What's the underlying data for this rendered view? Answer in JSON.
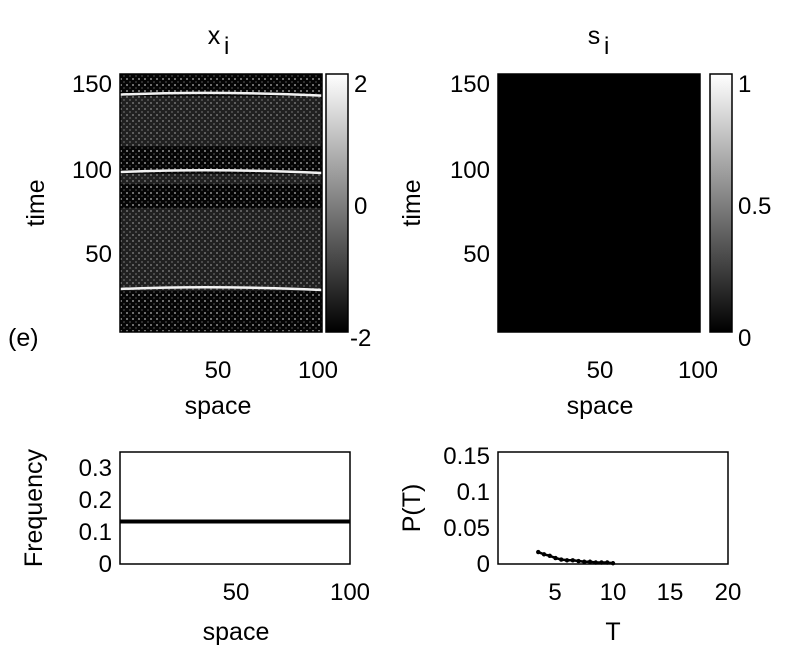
{
  "chart_data": [
    {
      "type": "heatmap",
      "title": "x",
      "title_subscript": "i",
      "panel_label": "(e)",
      "xlabel": "space",
      "ylabel": "time",
      "xlim": [
        0,
        100
      ],
      "ylim": [
        0,
        150
      ],
      "xticks": [
        "50",
        "100"
      ],
      "yticks": [
        "50",
        "100",
        "150"
      ],
      "colorbar": {
        "range": [
          -2,
          2
        ],
        "ticks": [
          "-2",
          "0",
          "2"
        ]
      },
      "colormap": "gray",
      "dark_bands": [
        [
          0,
          24
        ],
        [
          72,
          86
        ],
        [
          92,
          108
        ],
        [
          137,
          150
        ]
      ],
      "front_lines": [
        25,
        93,
        138
      ]
    },
    {
      "type": "heatmap",
      "title": "s",
      "title_subscript": "i",
      "xlabel": "space",
      "ylabel": "time",
      "xlim": [
        0,
        100
      ],
      "ylim": [
        0,
        150
      ],
      "xticks": [
        "50",
        "100"
      ],
      "yticks": [
        "50",
        "100",
        "150"
      ],
      "colorbar": {
        "range": [
          0,
          1
        ],
        "ticks": [
          "0",
          "0.5",
          "1"
        ]
      },
      "colormap": "gray",
      "value": 0
    },
    {
      "type": "line",
      "xlabel": "space",
      "ylabel": "Frequency",
      "xlim": [
        0,
        100
      ],
      "ylim": [
        0,
        0.35
      ],
      "xticks": [
        "50",
        "100"
      ],
      "yticks": [
        "0",
        "0.1",
        "0.2",
        "0.3"
      ],
      "series": [
        {
          "x": [
            0,
            100
          ],
          "y": [
            0.133,
            0.133
          ]
        }
      ]
    },
    {
      "type": "line",
      "xlabel": "T",
      "ylabel": "P(T)",
      "xlim": [
        0,
        20
      ],
      "ylim": [
        0,
        0.15
      ],
      "xticks": [
        "5",
        "10",
        "15",
        "20"
      ],
      "yticks": [
        "0",
        "0.05",
        "0.1",
        "0.15"
      ],
      "series": [
        {
          "x": [
            3.5,
            4,
            4.5,
            5,
            5.5,
            6,
            6.5,
            7,
            7.5,
            8,
            8.5,
            9,
            9.5,
            10
          ],
          "y": [
            0.016,
            0.013,
            0.011,
            0.008,
            0.006,
            0.005,
            0.005,
            0.004,
            0.003,
            0.003,
            0.002,
            0.002,
            0.002,
            0.001
          ]
        }
      ]
    }
  ]
}
